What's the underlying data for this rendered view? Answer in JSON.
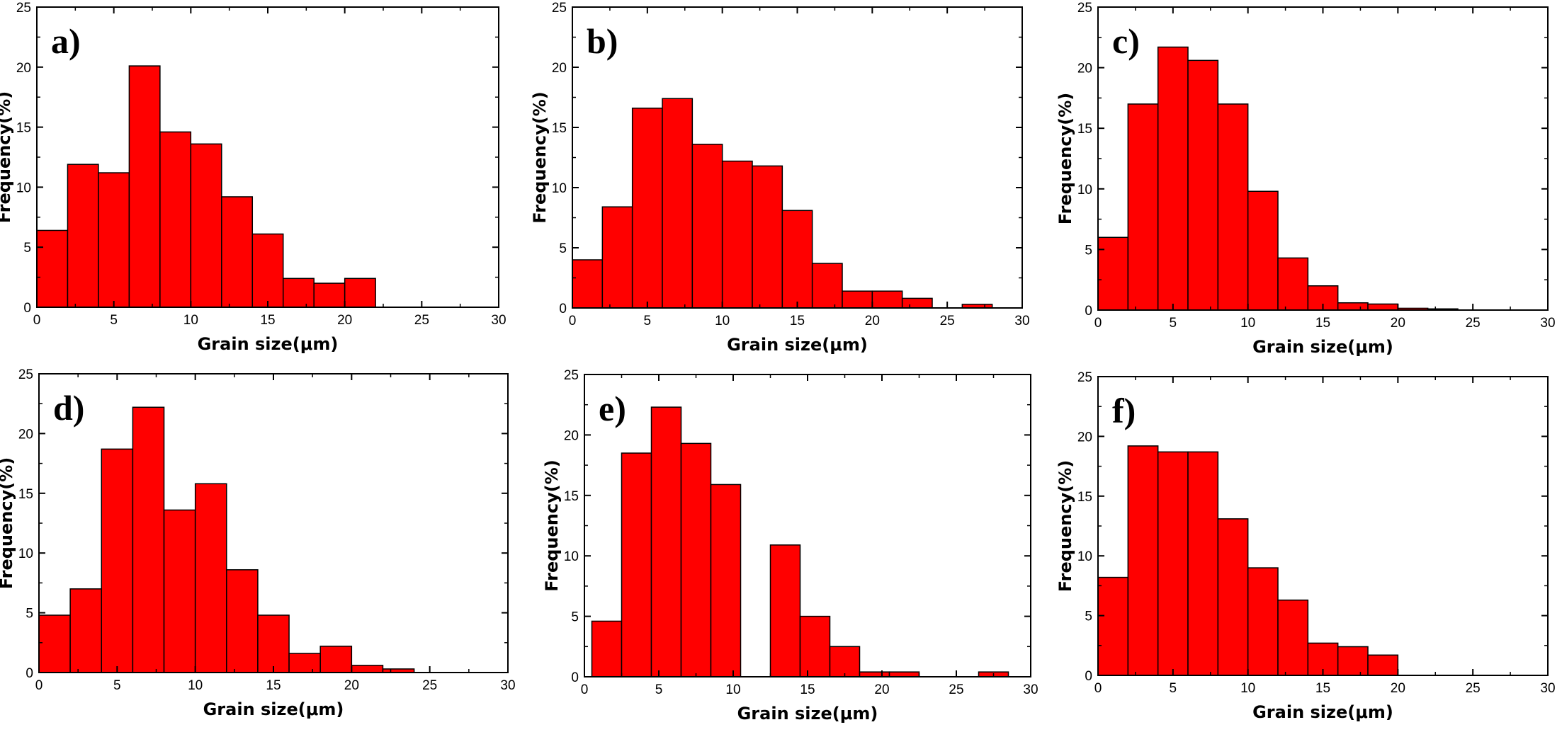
{
  "figure": {
    "bar_color": "#ff0000",
    "bar_edge_color": "#000000",
    "axis_color": "#000000"
  },
  "chart_data": [
    {
      "type": "bar",
      "panel_label": "a)",
      "xlabel": "Grain size(μm)",
      "ylabel": "Frequency(%)",
      "xlim": [
        0,
        30
      ],
      "ylim": [
        0,
        25
      ],
      "xticks": [
        0,
        5,
        10,
        15,
        20,
        25,
        30
      ],
      "yticks": [
        0,
        5,
        10,
        15,
        20,
        25
      ],
      "bin_width": 2,
      "x": [
        1,
        3,
        5,
        7,
        9,
        11,
        13,
        15,
        17,
        19,
        21
      ],
      "values": [
        6.4,
        11.9,
        11.2,
        20.1,
        14.6,
        13.6,
        9.2,
        6.1,
        2.4,
        2.0,
        2.4
      ]
    },
    {
      "type": "bar",
      "panel_label": "b)",
      "xlabel": "Grain size(μm)",
      "ylabel": "Frequency(%)",
      "xlim": [
        0,
        30
      ],
      "ylim": [
        0,
        25
      ],
      "xticks": [
        0,
        5,
        10,
        15,
        20,
        25,
        30
      ],
      "yticks": [
        0,
        5,
        10,
        15,
        20,
        25
      ],
      "bin_width": 2,
      "x": [
        1,
        3,
        5,
        7,
        9,
        11,
        13,
        15,
        17,
        19,
        21,
        23,
        25,
        27
      ],
      "values": [
        4.0,
        8.4,
        16.6,
        17.4,
        13.6,
        12.2,
        11.8,
        8.1,
        3.7,
        1.4,
        1.4,
        0.8,
        0.0,
        0.3
      ]
    },
    {
      "type": "bar",
      "panel_label": "c)",
      "xlabel": "Grain size(μm)",
      "ylabel": "Frequency(%)",
      "xlim": [
        0,
        30
      ],
      "ylim": [
        0,
        25
      ],
      "xticks": [
        0,
        5,
        10,
        15,
        20,
        25,
        30
      ],
      "yticks": [
        0,
        5,
        10,
        15,
        20,
        25
      ],
      "bin_width": 2,
      "x": [
        1,
        3,
        5,
        7,
        9,
        11,
        13,
        15,
        17,
        19,
        21,
        23
      ],
      "values": [
        6.0,
        17.0,
        21.7,
        20.6,
        17.0,
        9.8,
        4.3,
        2.0,
        0.6,
        0.5,
        0.15,
        0.1
      ]
    },
    {
      "type": "bar",
      "panel_label": "d)",
      "xlabel": "Grain size(μm)",
      "ylabel": "Frequency(%)",
      "xlim": [
        0,
        30
      ],
      "ylim": [
        0,
        25
      ],
      "xticks": [
        0,
        5,
        10,
        15,
        20,
        25,
        30
      ],
      "yticks": [
        0,
        5,
        10,
        15,
        20,
        25
      ],
      "bin_width": 2,
      "x": [
        1,
        3,
        5,
        7,
        9,
        11,
        13,
        15,
        17,
        19,
        21,
        23
      ],
      "values": [
        4.8,
        7.0,
        18.7,
        22.2,
        13.6,
        15.8,
        8.6,
        4.8,
        1.6,
        2.2,
        0.6,
        0.3
      ]
    },
    {
      "type": "bar",
      "panel_label": "e)",
      "xlabel": "Grain size(μm)",
      "ylabel": "Frequency(%)",
      "xlim": [
        0,
        30
      ],
      "ylim": [
        0,
        25
      ],
      "xticks": [
        0,
        5,
        10,
        15,
        20,
        25,
        30
      ],
      "yticks": [
        0,
        5,
        10,
        15,
        20,
        25
      ],
      "bin_width": 2,
      "x": [
        1.5,
        3.5,
        5.5,
        7.5,
        9.5,
        11.5,
        13.5,
        15.5,
        17.5,
        19.5,
        21.5,
        23.5,
        25.5,
        27.5
      ],
      "values": [
        4.6,
        18.5,
        22.3,
        19.3,
        15.9,
        0,
        10.9,
        5.0,
        2.5,
        0.4,
        0.4,
        0,
        0,
        0.4
      ]
    },
    {
      "type": "bar",
      "panel_label": "f)",
      "xlabel": "Grain size(μm)",
      "ylabel": "Frequency(%)",
      "xlim": [
        0,
        30
      ],
      "ylim": [
        0,
        25
      ],
      "xticks": [
        0,
        5,
        10,
        15,
        20,
        25,
        30
      ],
      "yticks": [
        0,
        5,
        10,
        15,
        20,
        25
      ],
      "bin_width": 2,
      "x": [
        1,
        3,
        5,
        7,
        9,
        11,
        13,
        15,
        17,
        19
      ],
      "values": [
        8.2,
        19.2,
        18.7,
        18.7,
        13.1,
        9.0,
        6.3,
        2.7,
        2.4,
        1.7
      ]
    }
  ]
}
